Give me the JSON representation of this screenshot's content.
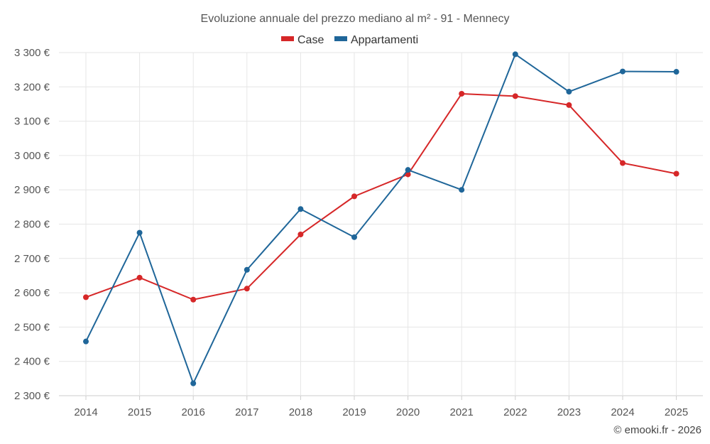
{
  "chart_data": {
    "type": "line",
    "title": "Evoluzione annuale del prezzo mediano al m² - 91 - Mennecy",
    "categories": [
      "2014",
      "2015",
      "2016",
      "2017",
      "2018",
      "2019",
      "2020",
      "2021",
      "2022",
      "2023",
      "2024",
      "2025"
    ],
    "series": [
      {
        "name": "Case",
        "color": "#d62728",
        "values": [
          2587,
          2644,
          2580,
          2612,
          2770,
          2881,
          2945,
          3180,
          3173,
          3147,
          2978,
          2947
        ]
      },
      {
        "name": "Appartamenti",
        "color": "#1f6699",
        "values": [
          2458,
          2775,
          2336,
          2667,
          2844,
          2762,
          2958,
          2900,
          3295,
          3186,
          3245,
          3244
        ]
      }
    ],
    "ylim": [
      2300,
      3300
    ],
    "yticks": [
      2300,
      2400,
      2500,
      2600,
      2700,
      2800,
      2900,
      3000,
      3100,
      3200,
      3300
    ],
    "ytick_labels": [
      "2 300 €",
      "2 400 €",
      "2 500 €",
      "2 600 €",
      "2 700 €",
      "2 800 €",
      "2 900 €",
      "3 000 €",
      "3 100 €",
      "3 200 €",
      "3 300 €"
    ],
    "xlabel": "",
    "ylabel": "",
    "grid": true,
    "legend_position": "top-center"
  },
  "credit": "© emooki.fr - 2026"
}
